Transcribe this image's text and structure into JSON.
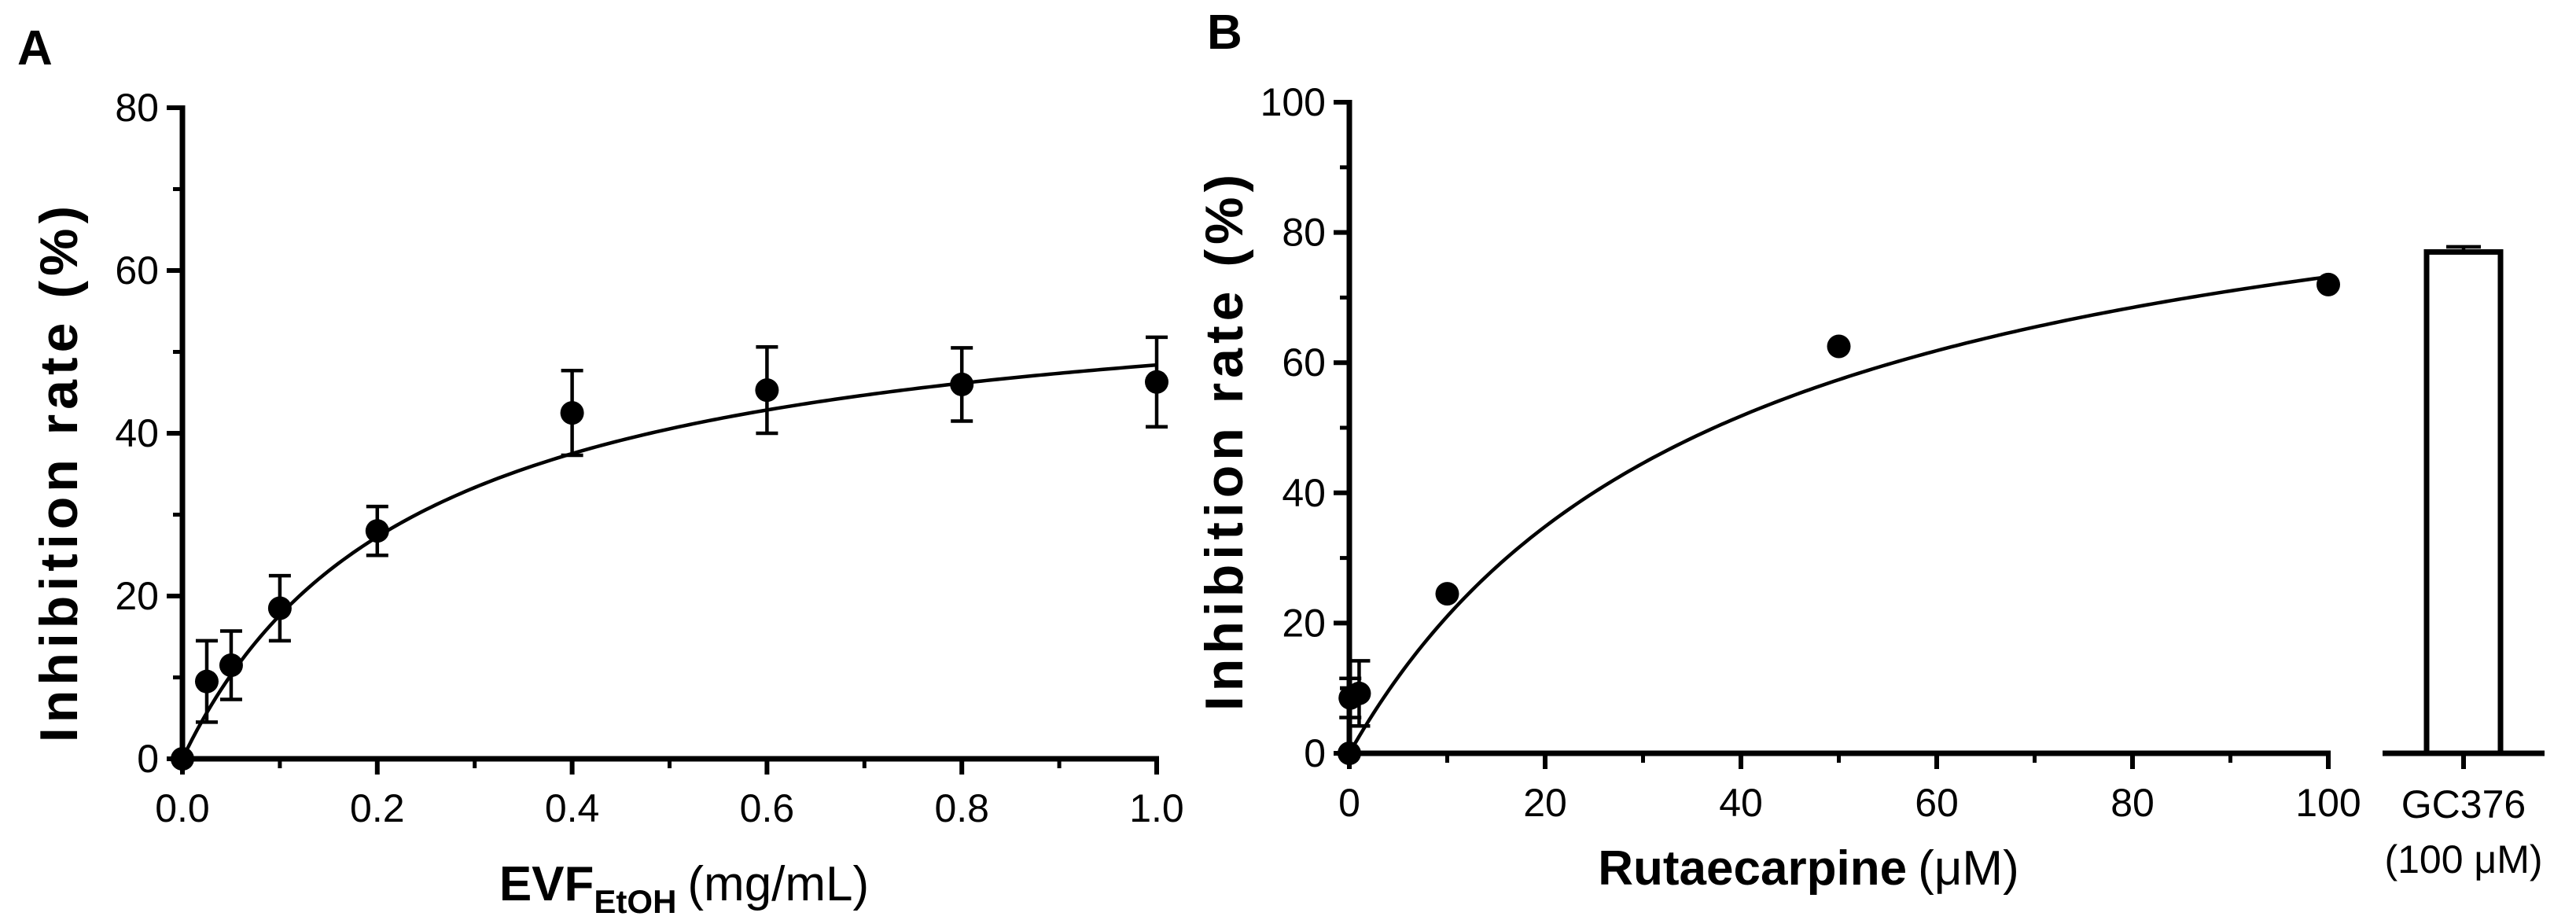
{
  "chart_data": [
    {
      "panel": "A",
      "type": "scatter",
      "title": "",
      "xlabel_main": "EVF",
      "xlabel_sub": "EtOH",
      "xlabel_unit": "(mg/mL)",
      "ylabel": "Inhibition rate (%)",
      "xlim": [
        0,
        1.0
      ],
      "ylim": [
        0,
        80
      ],
      "xticks": [
        "0.0",
        "0.2",
        "0.4",
        "0.6",
        "0.8",
        "1.0"
      ],
      "yticks": [
        "0",
        "20",
        "40",
        "60",
        "80"
      ],
      "series": [
        {
          "name": "EVF EtOH",
          "x": [
            0.0,
            0.025,
            0.05,
            0.1,
            0.2,
            0.4,
            0.6,
            0.8,
            1.0
          ],
          "y": [
            0.0,
            9.5,
            11.5,
            18.5,
            28.0,
            42.5,
            45.3,
            46.0,
            46.3
          ],
          "err": [
            0.0,
            5.0,
            4.2,
            4.0,
            3.0,
            5.2,
            5.3,
            4.5,
            5.5
          ]
        }
      ],
      "fit": {
        "model": "hyperbolic",
        "bmax": 60.0,
        "kd": 0.24
      }
    },
    {
      "panel": "B",
      "type": "scatter",
      "title": "",
      "xlabel": "Rutaecarpine",
      "xlabel_unit": "(μM)",
      "ylabel": "Inhibition rate (%)",
      "xlim": [
        0,
        100
      ],
      "ylim": [
        0,
        100
      ],
      "xticks": [
        "0",
        "20",
        "40",
        "60",
        "80",
        "100"
      ],
      "yticks": [
        "0",
        "20",
        "40",
        "60",
        "80",
        "100"
      ],
      "series": [
        {
          "name": "Rutaecarpine",
          "x": [
            0,
            0.1,
            1,
            10,
            50,
            100
          ],
          "y": [
            0.0,
            8.5,
            9.2,
            24.5,
            62.5,
            72.0
          ],
          "err": [
            0.0,
            3.0,
            5.0,
            0.0,
            0.0,
            0.0
          ]
        }
      ],
      "fit": {
        "model": "hyperbolic",
        "bmax": 101.0,
        "kd": 38.0
      },
      "bar": {
        "category_line1": "GC376",
        "category_line2": "(100 μM)",
        "value": 77.0,
        "err": 0.8
      }
    }
  ]
}
